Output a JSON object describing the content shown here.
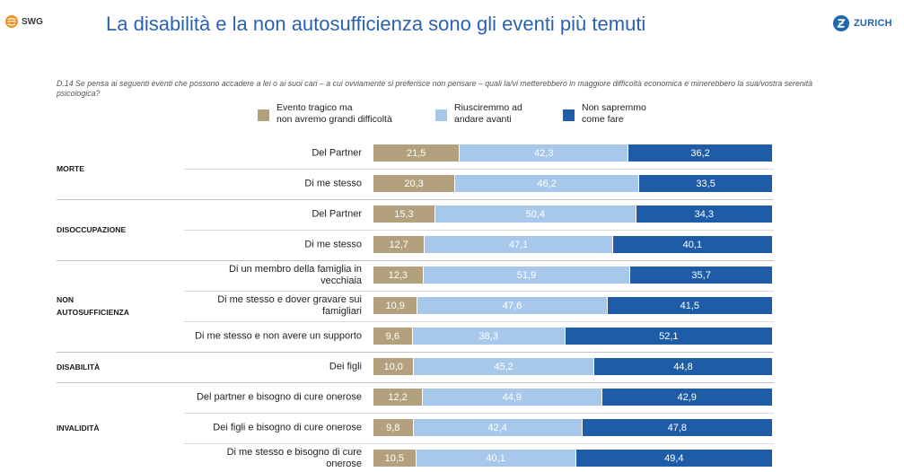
{
  "header": {
    "left_logo": {
      "icon": "swg-logo-icon",
      "text": "SWG"
    },
    "right_logo": {
      "icon": "zurich-logo-icon",
      "text": "ZURICH"
    }
  },
  "colors": {
    "title": "#2a62b0",
    "swg_orange": "#f4901e",
    "zurich_blue": "#2166ae"
  },
  "chart_data": {
    "type": "bar",
    "orientation": "horizontal",
    "stacked": true,
    "title": "La disabilità e la non autosufficienza sono gli eventi più temuti",
    "question": "D.14 Se pensa ai seguenti eventi che possono accadere a lei o ai suoi cari – a cui ovviamente si preferisce non pensare – quali la/vi metterebbero in maggiore difficoltà economica e minerebbero la sua/vostra serenità psicologica?",
    "xlim": [
      0,
      100
    ],
    "grid": false,
    "legend_position": "top",
    "series": [
      {
        "name": "Evento tragico ma\nnon avremo grandi difficoltà",
        "color": "#b2a17c"
      },
      {
        "name": "Riusciremmo ad\nandare avanti",
        "color": "#a7c8ea"
      },
      {
        "name": "Non sapremmo\ncome fare",
        "color": "#1e5ca7"
      }
    ],
    "groups": [
      {
        "name": "MORTE",
        "rows": [
          {
            "label": "Del Partner",
            "values": [
              21.5,
              42.3,
              36.2
            ],
            "labels": [
              "21,5",
              "42,3",
              "36,2"
            ]
          },
          {
            "label": "Di me stesso",
            "values": [
              20.3,
              46.2,
              33.5
            ],
            "labels": [
              "20,3",
              "46,2",
              "33,5"
            ]
          }
        ]
      },
      {
        "name": "DISOCCUPAZIONE",
        "rows": [
          {
            "label": "Del Partner",
            "values": [
              15.3,
              50.4,
              34.3
            ],
            "labels": [
              "15,3",
              "50,4",
              "34,3"
            ]
          },
          {
            "label": "Di me stesso",
            "values": [
              12.7,
              47.1,
              40.1
            ],
            "labels": [
              "12,7",
              "47,1",
              "40,1"
            ]
          }
        ]
      },
      {
        "name": "NON\nAUTOSUFFICIENZA",
        "rows": [
          {
            "label": "Di un membro della famiglia in\nvecchiaia",
            "values": [
              12.3,
              51.9,
              35.7
            ],
            "labels": [
              "12,3",
              "51,9",
              "35,7"
            ]
          },
          {
            "label": "Di me stesso e dover gravare sui\nfamigliari",
            "values": [
              10.9,
              47.6,
              41.5
            ],
            "labels": [
              "10,9",
              "47,6",
              "41,5"
            ]
          },
          {
            "label": "Di me stesso e non avere un supporto",
            "values": [
              9.6,
              38.3,
              52.1
            ],
            "labels": [
              "9,6",
              "38,3",
              "52,1"
            ]
          }
        ]
      },
      {
        "name": "DISABILITÀ",
        "rows": [
          {
            "label": "Dei figli",
            "values": [
              10.0,
              45.2,
              44.8
            ],
            "labels": [
              "10,0",
              "45,2",
              "44,8"
            ]
          }
        ]
      },
      {
        "name": "INVALIDITÀ",
        "rows": [
          {
            "label": "Del partner e bisogno di cure onerose",
            "values": [
              12.2,
              44.9,
              42.9
            ],
            "labels": [
              "12,2",
              "44,9",
              "42,9"
            ]
          },
          {
            "label": "Dei figli e bisogno di cure onerose",
            "values": [
              9.8,
              42.4,
              47.8
            ],
            "labels": [
              "9,8",
              "42,4",
              "47,8"
            ]
          },
          {
            "label": "Di me stesso e bisogno di cure\nonerose",
            "values": [
              10.5,
              40.1,
              49.4
            ],
            "labels": [
              "10,5",
              "40,1",
              "49,4"
            ]
          }
        ]
      }
    ]
  }
}
